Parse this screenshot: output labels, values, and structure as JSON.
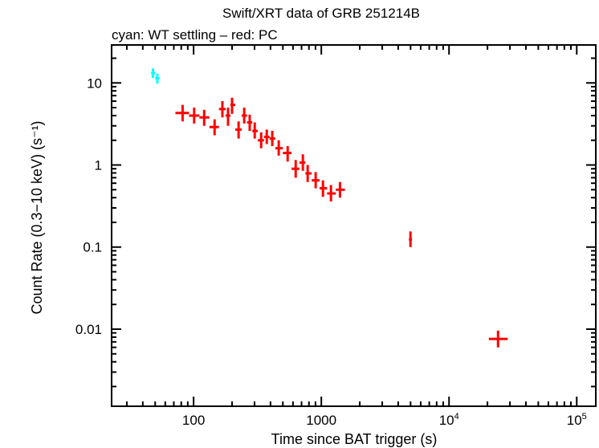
{
  "chart_data": {
    "type": "scatter",
    "title": "Swift/XRT data of GRB 251214B",
    "subtitle": "cyan: WT settling – red: PC",
    "xlabel": "Time since BAT trigger (s)",
    "ylabel": "Count Rate (0.3−10 keV) (s⁻¹)",
    "xscale": "log",
    "yscale": "log",
    "xlim": [
      22.8,
      141000
    ],
    "ylim": [
      0.00115,
      29
    ],
    "x_ticks": [
      {
        "value": 100,
        "label": "100"
      },
      {
        "value": 1000,
        "label": "1000"
      },
      {
        "value": 10000,
        "label": "10",
        "exp": "4"
      },
      {
        "value": 100000,
        "label": "10",
        "exp": "5"
      }
    ],
    "y_ticks": [
      {
        "value": 10,
        "label": "10"
      },
      {
        "value": 1,
        "label": "1"
      },
      {
        "value": 0.1,
        "label": "0.1"
      },
      {
        "value": 0.01,
        "label": "0.01"
      }
    ],
    "grid": false,
    "series": [
      {
        "name": "WT settling",
        "color": "#00ffff",
        "points": [
          {
            "x": 48,
            "xlo": 46.5,
            "xhi": 50,
            "y": 13.2,
            "ylo": 11.5,
            "yhi": 15
          },
          {
            "x": 52,
            "xlo": 50,
            "xhi": 54,
            "y": 11.4,
            "ylo": 9.8,
            "yhi": 13
          }
        ]
      },
      {
        "name": "PC",
        "color": "#ff0000",
        "points": [
          {
            "x": 82,
            "xlo": 72,
            "xhi": 92,
            "y": 4.3,
            "ylo": 3.4,
            "yhi": 5.4
          },
          {
            "x": 101,
            "xlo": 92,
            "xhi": 111,
            "y": 4.0,
            "ylo": 3.2,
            "yhi": 5.0
          },
          {
            "x": 121,
            "xlo": 111,
            "xhi": 133,
            "y": 3.8,
            "ylo": 3.0,
            "yhi": 4.7
          },
          {
            "x": 146,
            "xlo": 133,
            "xhi": 158,
            "y": 2.9,
            "ylo": 2.3,
            "yhi": 3.6
          },
          {
            "x": 168,
            "xlo": 158,
            "xhi": 178,
            "y": 4.8,
            "ylo": 3.8,
            "yhi": 6.0
          },
          {
            "x": 186,
            "xlo": 178,
            "xhi": 194,
            "y": 4.0,
            "ylo": 3.0,
            "yhi": 5.0
          },
          {
            "x": 200,
            "xlo": 194,
            "xhi": 212,
            "y": 5.4,
            "ylo": 4.2,
            "yhi": 6.6
          },
          {
            "x": 225,
            "xlo": 212,
            "xhi": 238,
            "y": 2.7,
            "ylo": 2.1,
            "yhi": 3.4
          },
          {
            "x": 249,
            "xlo": 238,
            "xhi": 262,
            "y": 4.0,
            "ylo": 3.2,
            "yhi": 5.0
          },
          {
            "x": 275,
            "xlo": 262,
            "xhi": 288,
            "y": 3.3,
            "ylo": 2.6,
            "yhi": 4.1
          },
          {
            "x": 301,
            "xlo": 288,
            "xhi": 318,
            "y": 2.6,
            "ylo": 2.1,
            "yhi": 3.3
          },
          {
            "x": 338,
            "xlo": 318,
            "xhi": 356,
            "y": 2.0,
            "ylo": 1.6,
            "yhi": 2.5
          },
          {
            "x": 374,
            "xlo": 356,
            "xhi": 393,
            "y": 2.2,
            "ylo": 1.8,
            "yhi": 2.7
          },
          {
            "x": 413,
            "xlo": 393,
            "xhi": 436,
            "y": 2.1,
            "ylo": 1.7,
            "yhi": 2.6
          },
          {
            "x": 464,
            "xlo": 436,
            "xhi": 500,
            "y": 1.6,
            "ylo": 1.3,
            "yhi": 2.0
          },
          {
            "x": 545,
            "xlo": 500,
            "xhi": 585,
            "y": 1.4,
            "ylo": 1.1,
            "yhi": 1.7
          },
          {
            "x": 630,
            "xlo": 585,
            "xhi": 675,
            "y": 0.9,
            "ylo": 0.7,
            "yhi": 1.15
          },
          {
            "x": 717,
            "xlo": 675,
            "xhi": 750,
            "y": 1.07,
            "ylo": 0.85,
            "yhi": 1.35
          },
          {
            "x": 782,
            "xlo": 750,
            "xhi": 840,
            "y": 0.79,
            "ylo": 0.62,
            "yhi": 1.0
          },
          {
            "x": 903,
            "xlo": 840,
            "xhi": 970,
            "y": 0.65,
            "ylo": 0.52,
            "yhi": 0.82
          },
          {
            "x": 1030,
            "xlo": 970,
            "xhi": 1110,
            "y": 0.52,
            "ylo": 0.41,
            "yhi": 0.65
          },
          {
            "x": 1190,
            "xlo": 1110,
            "xhi": 1300,
            "y": 0.45,
            "ylo": 0.36,
            "yhi": 0.57
          },
          {
            "x": 1400,
            "xlo": 1300,
            "xhi": 1530,
            "y": 0.5,
            "ylo": 0.4,
            "yhi": 0.62
          },
          {
            "x": 4990,
            "xlo": 4850,
            "xhi": 5130,
            "y": 0.124,
            "ylo": 0.1,
            "yhi": 0.155
          },
          {
            "x": 24200,
            "xlo": 20500,
            "xhi": 28800,
            "y": 0.0076,
            "ylo": 0.006,
            "yhi": 0.0096
          }
        ]
      }
    ]
  }
}
